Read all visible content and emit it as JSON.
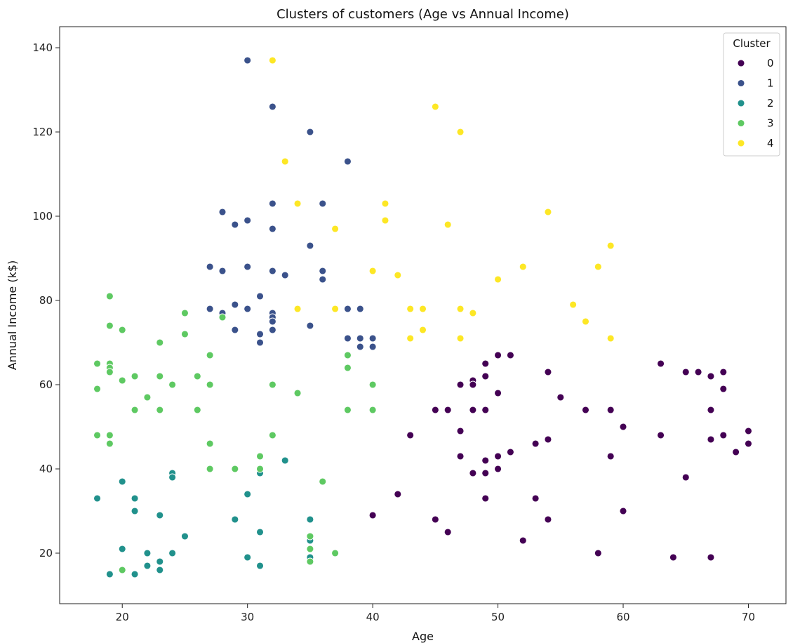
{
  "chart_data": {
    "type": "scatter",
    "title": "Clusters of customers (Age vs Annual Income)",
    "xlabel": "Age",
    "ylabel": "Annual Income (k$)",
    "xlim": [
      15,
      73
    ],
    "ylim": [
      8,
      145
    ],
    "xticks": [
      20,
      30,
      40,
      50,
      60,
      70
    ],
    "yticks": [
      20,
      40,
      60,
      80,
      100,
      120,
      140
    ],
    "grid": false,
    "legend": {
      "title": "Cluster",
      "placement": "top-right"
    },
    "series": [
      {
        "name": "0",
        "color": "#440154",
        "points": [
          [
            40,
            29
          ],
          [
            42,
            34
          ],
          [
            43,
            48
          ],
          [
            45,
            28
          ],
          [
            45,
            54
          ],
          [
            46,
            54
          ],
          [
            46,
            25
          ],
          [
            47,
            60
          ],
          [
            47,
            49
          ],
          [
            47,
            43
          ],
          [
            48,
            61
          ],
          [
            48,
            60
          ],
          [
            48,
            54
          ],
          [
            48,
            39
          ],
          [
            49,
            65
          ],
          [
            49,
            62
          ],
          [
            49,
            54
          ],
          [
            49,
            42
          ],
          [
            49,
            39
          ],
          [
            49,
            33
          ],
          [
            50,
            67
          ],
          [
            50,
            58
          ],
          [
            50,
            43
          ],
          [
            50,
            40
          ],
          [
            51,
            67
          ],
          [
            51,
            44
          ],
          [
            52,
            23
          ],
          [
            53,
            46
          ],
          [
            53,
            33
          ],
          [
            54,
            63
          ],
          [
            54,
            47
          ],
          [
            54,
            28
          ],
          [
            55,
            57
          ],
          [
            57,
            54
          ],
          [
            58,
            20
          ],
          [
            59,
            54
          ],
          [
            59,
            43
          ],
          [
            60,
            50
          ],
          [
            60,
            30
          ],
          [
            63,
            65
          ],
          [
            63,
            48
          ],
          [
            64,
            19
          ],
          [
            65,
            63
          ],
          [
            65,
            38
          ],
          [
            66,
            63
          ],
          [
            67,
            62
          ],
          [
            67,
            54
          ],
          [
            67,
            47
          ],
          [
            67,
            19
          ],
          [
            68,
            63
          ],
          [
            68,
            59
          ],
          [
            68,
            48
          ],
          [
            69,
            44
          ],
          [
            70,
            49
          ],
          [
            70,
            46
          ]
        ]
      },
      {
        "name": "1",
        "color": "#3b528b",
        "points": [
          [
            27,
            88
          ],
          [
            27,
            78
          ],
          [
            28,
            101
          ],
          [
            28,
            87
          ],
          [
            28,
            77
          ],
          [
            29,
            98
          ],
          [
            29,
            79
          ],
          [
            29,
            73
          ],
          [
            30,
            137
          ],
          [
            30,
            99
          ],
          [
            30,
            88
          ],
          [
            30,
            78
          ],
          [
            31,
            81
          ],
          [
            31,
            72
          ],
          [
            31,
            70
          ],
          [
            32,
            126
          ],
          [
            32,
            103
          ],
          [
            32,
            97
          ],
          [
            32,
            87
          ],
          [
            32,
            77
          ],
          [
            32,
            76
          ],
          [
            32,
            75
          ],
          [
            32,
            73
          ],
          [
            33,
            86
          ],
          [
            35,
            120
          ],
          [
            35,
            93
          ],
          [
            35,
            74
          ],
          [
            36,
            103
          ],
          [
            36,
            87
          ],
          [
            36,
            85
          ],
          [
            38,
            113
          ],
          [
            38,
            78
          ],
          [
            38,
            71
          ],
          [
            39,
            78
          ],
          [
            39,
            71
          ],
          [
            39,
            69
          ],
          [
            40,
            71
          ],
          [
            40,
            69
          ]
        ]
      },
      {
        "name": "2",
        "color": "#21918c",
        "points": [
          [
            18,
            33
          ],
          [
            19,
            15
          ],
          [
            20,
            37
          ],
          [
            20,
            21
          ],
          [
            21,
            33
          ],
          [
            21,
            30
          ],
          [
            21,
            15
          ],
          [
            22,
            20
          ],
          [
            22,
            17
          ],
          [
            23,
            29
          ],
          [
            23,
            18
          ],
          [
            23,
            16
          ],
          [
            24,
            39
          ],
          [
            24,
            38
          ],
          [
            24,
            20
          ],
          [
            25,
            24
          ],
          [
            29,
            28
          ],
          [
            30,
            34
          ],
          [
            30,
            19
          ],
          [
            31,
            39
          ],
          [
            31,
            25
          ],
          [
            31,
            17
          ],
          [
            33,
            42
          ],
          [
            35,
            28
          ],
          [
            35,
            23
          ],
          [
            35,
            19
          ]
        ]
      },
      {
        "name": "3",
        "color": "#5ec962",
        "points": [
          [
            18,
            65
          ],
          [
            18,
            59
          ],
          [
            18,
            48
          ],
          [
            19,
            81
          ],
          [
            19,
            74
          ],
          [
            19,
            65
          ],
          [
            19,
            64
          ],
          [
            19,
            63
          ],
          [
            19,
            48
          ],
          [
            19,
            46
          ],
          [
            20,
            73
          ],
          [
            20,
            61
          ],
          [
            20,
            16
          ],
          [
            21,
            62
          ],
          [
            21,
            54
          ],
          [
            22,
            57
          ],
          [
            23,
            70
          ],
          [
            23,
            62
          ],
          [
            23,
            54
          ],
          [
            24,
            60
          ],
          [
            25,
            77
          ],
          [
            25,
            72
          ],
          [
            26,
            62
          ],
          [
            26,
            54
          ],
          [
            27,
            67
          ],
          [
            27,
            60
          ],
          [
            27,
            46
          ],
          [
            27,
            40
          ],
          [
            28,
            76
          ],
          [
            29,
            40
          ],
          [
            31,
            43
          ],
          [
            31,
            40
          ],
          [
            32,
            60
          ],
          [
            32,
            48
          ],
          [
            34,
            58
          ],
          [
            35,
            24
          ],
          [
            35,
            21
          ],
          [
            35,
            18
          ],
          [
            36,
            37
          ],
          [
            37,
            20
          ],
          [
            38,
            67
          ],
          [
            38,
            64
          ],
          [
            38,
            54
          ],
          [
            40,
            60
          ],
          [
            40,
            54
          ]
        ]
      },
      {
        "name": "4",
        "color": "#fde725",
        "points": [
          [
            32,
            137
          ],
          [
            33,
            113
          ],
          [
            34,
            103
          ],
          [
            34,
            78
          ],
          [
            37,
            97
          ],
          [
            37,
            78
          ],
          [
            40,
            87
          ],
          [
            41,
            103
          ],
          [
            41,
            99
          ],
          [
            42,
            86
          ],
          [
            43,
            78
          ],
          [
            43,
            71
          ],
          [
            44,
            78
          ],
          [
            44,
            73
          ],
          [
            45,
            126
          ],
          [
            46,
            98
          ],
          [
            47,
            120
          ],
          [
            47,
            78
          ],
          [
            47,
            71
          ],
          [
            48,
            77
          ],
          [
            50,
            85
          ],
          [
            52,
            88
          ],
          [
            54,
            101
          ],
          [
            56,
            79
          ],
          [
            57,
            75
          ],
          [
            58,
            88
          ],
          [
            59,
            93
          ],
          [
            59,
            71
          ]
        ]
      }
    ]
  }
}
